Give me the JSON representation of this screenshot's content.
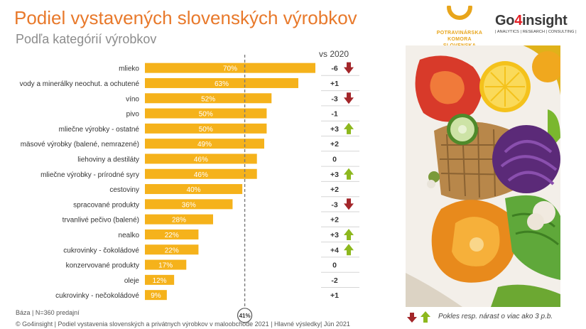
{
  "header": {
    "title": "Podiel vystavených slovenských výrobkov",
    "subtitle": "Podľa kategórií výrobkov"
  },
  "logos": {
    "pk_text": "POTRAVINÁRSKA KOMORA SLOVENSKA",
    "pk_line1": "POTRAVINÁRSKA",
    "pk_line2": "KOMORA",
    "pk_line3": "SLOVENSKA",
    "g4_pre": "Go",
    "g4_four": "4",
    "g4_post": "insight",
    "g4_tagline": "| ANALYTICS | RESEARCH | CONSULTING |"
  },
  "colors": {
    "bar": "#F5B21B",
    "down_arrow": "#A3262A",
    "up_arrow": "#8DB81E",
    "title": "#E8792B",
    "average_line": "#7a7a7a"
  },
  "chart_data": {
    "type": "bar",
    "orientation": "horizontal",
    "value_unit": "%",
    "categories": [
      "mlieko",
      "vody a minerálky neochut. a ochutené",
      "víno",
      "pivo",
      "mliečne výrobky - ostatné",
      "mäsové výrobky (balené, nemrazené)",
      "liehoviny a destiláty",
      "mliečne výrobky - prírodné syry",
      "cestoviny",
      "spracované produkty",
      "trvanlivé pečivo (balené)",
      "nealko",
      "cukrovinky - čokoládové",
      "konzervované produkty",
      "oleje",
      "cukrovinky - nečokoládové"
    ],
    "values": [
      70,
      63,
      52,
      50,
      50,
      49,
      46,
      46,
      40,
      36,
      28,
      22,
      22,
      17,
      12,
      9
    ],
    "labels": [
      "70%",
      "63%",
      "52%",
      "50%",
      "50%",
      "49%",
      "46%",
      "46%",
      "40%",
      "36%",
      "28%",
      "22%",
      "22%",
      "17%",
      "12%",
      "9%"
    ],
    "change_header": "vs 2020",
    "changes": [
      "-6",
      "+1",
      "-3",
      "-1",
      "+3",
      "+2",
      "0",
      "+3",
      "+2",
      "-3",
      "+2",
      "+3",
      "+4",
      "0",
      "-2",
      "+1"
    ],
    "change_arrows": [
      "down",
      "",
      "down",
      "",
      "up",
      "",
      "",
      "up",
      "",
      "down",
      "",
      "up",
      "up",
      "",
      "",
      ""
    ],
    "average": 41,
    "average_label": "41%",
    "xlim": [
      0,
      70
    ]
  },
  "footer": {
    "base": "Báza | N=360 predajní",
    "source": "© Go4insight | Podiel vystavenia slovenských a privátnych výrobkov v maloobchode 2021 | Hlavné výsledky| Jún 2021",
    "legend": "Pokles resp. nárast o viac ako 3 p.b."
  }
}
